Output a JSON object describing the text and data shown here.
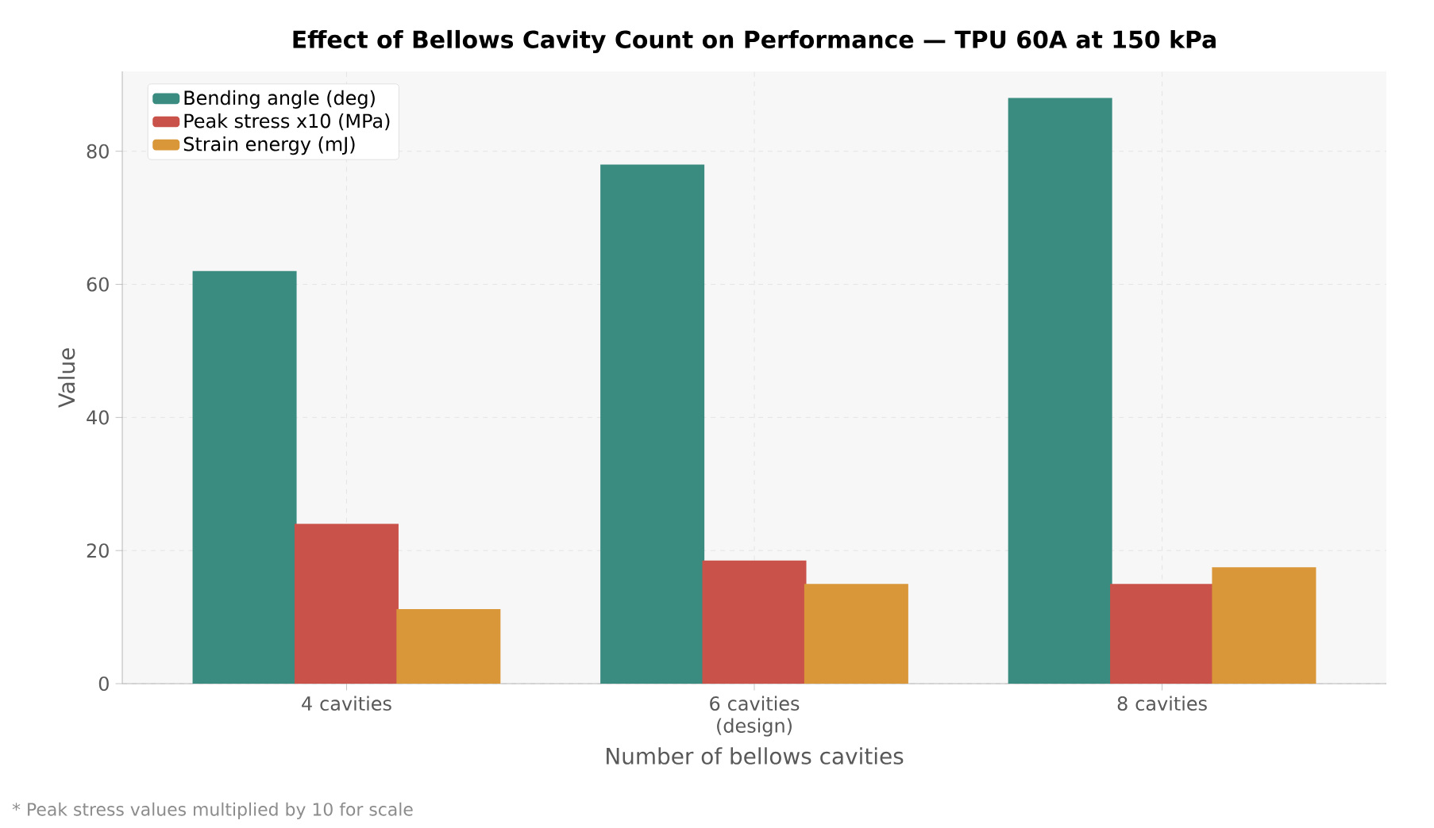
{
  "chart_data": {
    "type": "bar",
    "title": "Effect of Bellows Cavity Count on Performance — TPU 60A at 150 kPa",
    "xlabel": "Number of bellows cavities",
    "ylabel": "Value",
    "categories": [
      "4 cavities",
      "6 cavities (design)",
      "8 cavities"
    ],
    "series": [
      {
        "name": "Bending angle (deg)",
        "color": "#3a8b80",
        "values": [
          62,
          78,
          88
        ]
      },
      {
        "name": "Peak stress x10 (MPa)",
        "color": "#c9534a",
        "values": [
          24,
          18.5,
          15
        ]
      },
      {
        "name": "Strain energy (mJ)",
        "color": "#d9973a",
        "values": [
          11.2,
          15,
          17.5
        ]
      }
    ],
    "ylim": [
      0,
      92
    ],
    "yticks": [
      0,
      20,
      40,
      60,
      80
    ],
    "grid": true,
    "legend": "top left",
    "annotations": [
      "* Peak stress values multiplied by 10 for scale"
    ]
  }
}
